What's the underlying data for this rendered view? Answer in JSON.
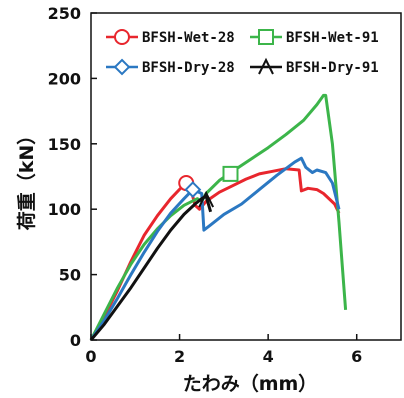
{
  "chart_data": {
    "type": "line",
    "xlabel": "たわみ（mm）",
    "ylabel": "荷重（kN）",
    "xlim": [
      0,
      7
    ],
    "ylim": [
      0,
      250
    ],
    "xticks": [
      "0",
      "2",
      "4",
      "6"
    ],
    "yticks": [
      "0",
      "50",
      "100",
      "150",
      "200",
      "250"
    ],
    "legend_position": "top-right",
    "grid": false,
    "series": [
      {
        "name": "BFSH-Wet-28",
        "color": "#e8262d",
        "marker": "circle",
        "points": [
          [
            0,
            0
          ],
          [
            0.3,
            18
          ],
          [
            0.6,
            38
          ],
          [
            0.9,
            60
          ],
          [
            1.2,
            80
          ],
          [
            1.5,
            95
          ],
          [
            1.8,
            108
          ],
          [
            2.05,
            117
          ],
          [
            2.15,
            120
          ],
          [
            2.25,
            116
          ],
          [
            2.35,
            103
          ],
          [
            2.45,
            100
          ],
          [
            2.6,
            106
          ],
          [
            2.9,
            113
          ],
          [
            3.2,
            118
          ],
          [
            3.5,
            123
          ],
          [
            3.8,
            127
          ],
          [
            4.1,
            129
          ],
          [
            4.4,
            131
          ],
          [
            4.7,
            130
          ],
          [
            4.75,
            114
          ],
          [
            4.9,
            116
          ],
          [
            5.1,
            115
          ],
          [
            5.25,
            112
          ],
          [
            5.5,
            104
          ],
          [
            5.6,
            97
          ]
        ],
        "marker_points": [
          [
            2.15,
            120
          ]
        ]
      },
      {
        "name": "BFSH-Wet-91",
        "color": "#3cb54a",
        "marker": "square",
        "points": [
          [
            0,
            0
          ],
          [
            0.3,
            20
          ],
          [
            0.6,
            40
          ],
          [
            0.9,
            58
          ],
          [
            1.2,
            73
          ],
          [
            1.5,
            85
          ],
          [
            1.8,
            95
          ],
          [
            2.1,
            103
          ],
          [
            2.4,
            108
          ],
          [
            2.5,
            106
          ],
          [
            2.6,
            112
          ],
          [
            2.9,
            122
          ],
          [
            3.2,
            129
          ],
          [
            3.6,
            138
          ],
          [
            4.0,
            147
          ],
          [
            4.4,
            157
          ],
          [
            4.8,
            168
          ],
          [
            5.1,
            180
          ],
          [
            5.25,
            187
          ],
          [
            5.3,
            187
          ],
          [
            5.45,
            150
          ],
          [
            5.6,
            90
          ],
          [
            5.75,
            23
          ]
        ],
        "marker_points": [
          [
            3.15,
            127
          ]
        ]
      },
      {
        "name": "BFSH-Dry-28",
        "color": "#2b78c2",
        "marker": "diamond",
        "points": [
          [
            0,
            0
          ],
          [
            0.3,
            15
          ],
          [
            0.6,
            32
          ],
          [
            0.9,
            50
          ],
          [
            1.2,
            67
          ],
          [
            1.5,
            83
          ],
          [
            1.8,
            97
          ],
          [
            2.1,
            108
          ],
          [
            2.3,
            115
          ],
          [
            2.5,
            112
          ],
          [
            2.55,
            84
          ],
          [
            2.7,
            88
          ],
          [
            3.0,
            96
          ],
          [
            3.4,
            104
          ],
          [
            3.8,
            115
          ],
          [
            4.2,
            126
          ],
          [
            4.6,
            136
          ],
          [
            4.75,
            139
          ],
          [
            4.85,
            132
          ],
          [
            5.0,
            128
          ],
          [
            5.1,
            130
          ],
          [
            5.3,
            128
          ],
          [
            5.45,
            120
          ],
          [
            5.6,
            100
          ]
        ],
        "marker_points": [
          [
            2.3,
            115
          ]
        ]
      },
      {
        "name": "BFSH-Dry-91",
        "color": "#111111",
        "marker": "triangle",
        "points": [
          [
            0,
            0
          ],
          [
            0.3,
            12
          ],
          [
            0.6,
            26
          ],
          [
            0.9,
            40
          ],
          [
            1.2,
            55
          ],
          [
            1.5,
            70
          ],
          [
            1.8,
            84
          ],
          [
            2.1,
            96
          ],
          [
            2.35,
            104
          ],
          [
            2.5,
            108
          ],
          [
            2.6,
            110
          ],
          [
            2.7,
            98
          ]
        ],
        "marker_points": [
          [
            2.6,
            107
          ]
        ]
      }
    ]
  }
}
